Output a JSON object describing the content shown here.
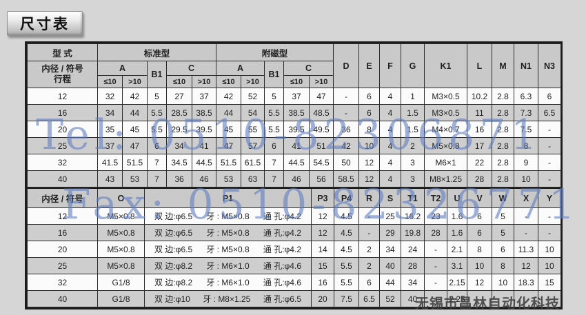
{
  "title": "尺寸表",
  "watermarks": {
    "tel": "Tel: 0510-82306871",
    "fax": "Fax: 0510-82326771",
    "company": "无锡市昌林自动化科技"
  },
  "colors": {
    "page_bg": "#d6d6d6",
    "header_bg": "#c9c9c9",
    "row_stripe": "#cecece",
    "row_plain": "#fbfbfb",
    "border": "#1c1c1c",
    "watermark_blue": "#607ec1",
    "watermark_gray": "#3e3e3e"
  },
  "section1": {
    "headers": {
      "type": "型 式",
      "standard": "标准型",
      "magnet": "附磁型",
      "bore_label": "内径 / 符号",
      "stroke_label": "行程",
      "a": "A",
      "b1": "B1",
      "c": "C",
      "le10": "≤10",
      "gt10": ">10",
      "singles": [
        "D",
        "E",
        "F",
        "G",
        "K1",
        "L",
        "M",
        "N1",
        "N3"
      ]
    },
    "rows": [
      {
        "bore": "12",
        "values": [
          "32",
          "42",
          "5",
          "27",
          "37",
          "42",
          "52",
          "5",
          "37",
          "47",
          "-",
          "6",
          "4",
          "1",
          "M3×0.5",
          "10.2",
          "2.8",
          "6.3",
          "6"
        ]
      },
      {
        "bore": "16",
        "values": [
          "34",
          "44",
          "5.5",
          "28.5",
          "38.5",
          "44",
          "54",
          "5.5",
          "38.5",
          "48.5",
          "-",
          "6",
          "4",
          "1.5",
          "M3×0.5",
          "11",
          "2.8",
          "7.3",
          "6.5"
        ]
      },
      {
        "bore": "20",
        "values": [
          "35",
          "45",
          "5.5",
          "29.5",
          "39.5",
          "45",
          "55",
          "5.5",
          "39.5",
          "49.5",
          "36",
          "8",
          "4",
          "1.5",
          "M4×0.7",
          "16",
          "2.8",
          "7.5",
          "-"
        ]
      },
      {
        "bore": "25",
        "values": [
          "37",
          "47",
          "6",
          "34",
          "41",
          "47",
          "57",
          "6",
          "41",
          "51",
          "42",
          "10",
          "4",
          "2",
          "M5×0.8",
          "17",
          "2.8",
          "8",
          "-"
        ]
      },
      {
        "bore": "32",
        "values": [
          "41.5",
          "51.5",
          "7",
          "34.5",
          "44.5",
          "51.5",
          "61.5",
          "7",
          "44.5",
          "54.5",
          "50",
          "12",
          "4",
          "3",
          "M6×1",
          "22",
          "2.8",
          "9",
          "-"
        ]
      },
      {
        "bore": "40",
        "values": [
          "43",
          "53",
          "7",
          "36",
          "46",
          "53",
          "63",
          "7",
          "46",
          "56",
          "58.5",
          "12",
          "4",
          "3",
          "M8×1.25",
          "28",
          "2.8",
          "10",
          "-"
        ]
      }
    ]
  },
  "section2": {
    "headers": {
      "bore_label": "内径 / 符号",
      "cols": [
        "O",
        "P1",
        "P3",
        "P4",
        "R",
        "S",
        "T1",
        "T2",
        "U",
        "V",
        "W",
        "X",
        "Y"
      ]
    },
    "rows": [
      {
        "bore": "12",
        "o": "M5×0.8",
        "p1": [
          "双 边:φ6.5",
          "牙 : M5×0.8",
          "通 孔:φ4.2"
        ],
        "values": [
          "12",
          "4.5",
          "-",
          "25",
          "16.2",
          "23",
          "1.6",
          "6",
          "5",
          "-",
          "-"
        ]
      },
      {
        "bore": "16",
        "o": "M5×0.8",
        "p1": [
          "双 边:φ6.5",
          "牙 : M5×0.8",
          "通 孔:φ4.2"
        ],
        "values": [
          "12",
          "4.5",
          "-",
          "29",
          "19.8",
          "28",
          "1.6",
          "6",
          "5",
          "-",
          "-"
        ]
      },
      {
        "bore": "20",
        "o": "M5×0.8",
        "p1": [
          "双 边:φ6.5",
          "牙 : M5×0.8",
          "通 孔:φ4.2"
        ],
        "values": [
          "14",
          "4.5",
          "2",
          "34",
          "24",
          "-",
          "2.1",
          "8",
          "6",
          "11.3",
          "10"
        ]
      },
      {
        "bore": "25",
        "o": "M5×0.8",
        "p1": [
          "双 边:φ8.2",
          "牙 : M6×1.0",
          "通 孔:φ4.6"
        ],
        "values": [
          "15",
          "5.5",
          "2",
          "40",
          "28",
          "-",
          "3.1",
          "10",
          "8",
          "12",
          "10"
        ]
      },
      {
        "bore": "32",
        "o": "G1/8",
        "p1": [
          "双 边:φ8.2",
          "牙 : M6×1.0",
          "通 孔:φ4.6"
        ],
        "values": [
          "16",
          "5.5",
          "6",
          "44",
          "34",
          "-",
          "2.15",
          "12",
          "10",
          "18.3",
          "15"
        ]
      },
      {
        "bore": "40",
        "o": "G1/8",
        "p1": [
          "双 边:φ10",
          "牙 : M8×1.25",
          "通 孔:φ6.5"
        ],
        "values": [
          "20",
          "7.5",
          "6.5",
          "52",
          "40",
          "-",
          "2.25",
          "",
          "",
          "",
          ""
        ]
      }
    ]
  }
}
